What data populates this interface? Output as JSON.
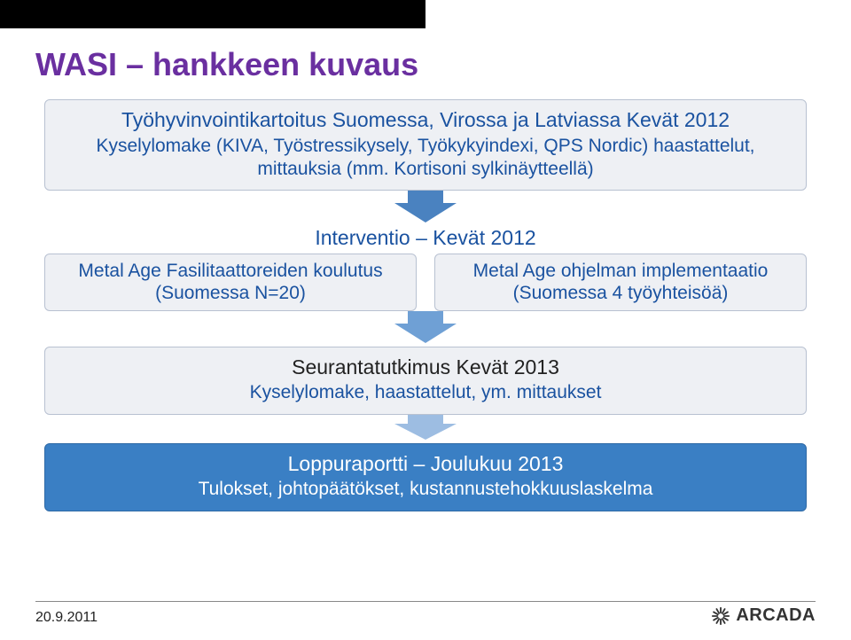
{
  "title": {
    "text": "WASI – hankkeen kuvaus",
    "color": "#6a2fa0",
    "fontsize": 36
  },
  "colors": {
    "background": "#ffffff",
    "box_light_bg": "#eef0f4",
    "box_light_border": "#b8c1d1",
    "box_blue_bg": "#3a7fc4",
    "box_blue_border": "#2f6aa6",
    "box_blue_text": "#ffffff",
    "arrow1_stem": "#4a82c0",
    "arrow1_head": "#4a82c0",
    "arrow2_stem": "#6fa0d5",
    "arrow2_head": "#6fa0d5",
    "arrow3_stem": "#9dbde2",
    "arrow3_head": "#9dbde2",
    "black_bar": "#000000",
    "rule": "#888888",
    "logo_color": "#333333"
  },
  "stage1": {
    "heading": "Työhyvinvointikartoitus Suomessa, Virossa ja Latviassa Kevät 2012",
    "sub": "Kyselylomake (KIVA, Työstressikysely, Työkykyindexi, QPS Nordic) haastattelut, mittauksia (mm. Kortisoni sylkinäytteellä)",
    "heading_color": "#1a52a0",
    "sub_color": "#1a52a0",
    "heading_fontsize": 23,
    "sub_fontsize": 21
  },
  "arrow1": {
    "stem_height": 14,
    "head_height": 22
  },
  "interv": {
    "heading": "Interventio – Kevät 2012",
    "heading_color": "#1a52a0",
    "left": {
      "line1": "Metal Age Fasilitaattoreiden koulutus",
      "line2": "(Suomessa N=20)",
      "text_color": "#1a52a0"
    },
    "right": {
      "line1": "Metal Age ohjelman implementaatio",
      "line2": "(Suomessa 4 työyhteisöä)",
      "text_color": "#1a52a0"
    }
  },
  "arrow2": {
    "stem_height": 14,
    "head_height": 22
  },
  "stage3": {
    "heading": "Seurantatutkimus Kevät 2013",
    "sub": "Kyselylomake, haastattelut, ym. mittaukset",
    "heading_color": "#222222",
    "sub_color": "#1a52a0"
  },
  "arrow3": {
    "stem_height": 10,
    "head_height": 18
  },
  "stage4": {
    "heading": "Loppuraportti – Joulukuu 2013",
    "sub": "Tulokset, johtopäätökset, kustannustehokkuuslaskelma",
    "heading_color": "#ffffff",
    "sub_color": "#ffffff"
  },
  "footer": {
    "date": "20.9.2011",
    "logo_text": "ARCADA"
  }
}
